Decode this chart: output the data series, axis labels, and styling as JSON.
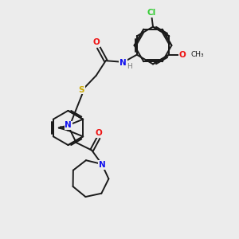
{
  "bg_color": "#ececec",
  "bond_color": "#1a1a1a",
  "atom_colors": {
    "Cl": "#33cc33",
    "O": "#ee1111",
    "N": "#1111ee",
    "S": "#ccaa00",
    "H": "#777777",
    "C": "#1a1a1a"
  },
  "figsize": [
    3.0,
    3.0
  ],
  "dpi": 100
}
